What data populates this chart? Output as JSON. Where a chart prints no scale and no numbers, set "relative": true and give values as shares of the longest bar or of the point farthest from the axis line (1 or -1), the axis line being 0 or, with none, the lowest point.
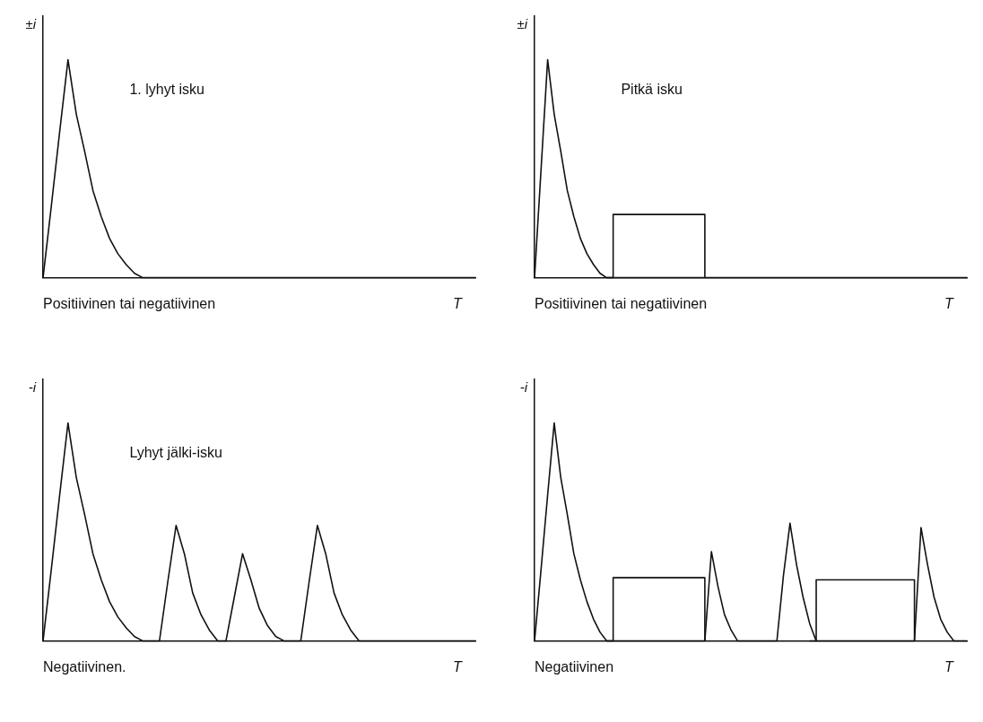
{
  "chart_data": [
    {
      "type": "line",
      "relative": true,
      "marker": "none",
      "ylabel": "±i",
      "xlabel": "T",
      "annotations": [
        "1. lyhyt isku",
        "Positiivinen tai negatiivinen"
      ],
      "categories": [
        null,
        null,
        null,
        null,
        null,
        null,
        null,
        null,
        null,
        null,
        null,
        null,
        null,
        null,
        null,
        null,
        null,
        null,
        null,
        null,
        null,
        null,
        null,
        null,
        null,
        null,
        null,
        null,
        null,
        null,
        null,
        null,
        null,
        null,
        null,
        null,
        null,
        null,
        null,
        null,
        null,
        null,
        null,
        null,
        null,
        null,
        null,
        null,
        null,
        null,
        null,
        null,
        null
      ],
      "series": [
        {
          "color": "#111111",
          "values": [
            0,
            0.33,
            0.67,
            1,
            0.75,
            0.58,
            0.4,
            0.28,
            0.18,
            0.11,
            0.06,
            0.02,
            0,
            0,
            0,
            0,
            0,
            0,
            0,
            0,
            0,
            0,
            0,
            0,
            0,
            0,
            0,
            0,
            0,
            0,
            0,
            0,
            0,
            0,
            0,
            0,
            0,
            0,
            0,
            0,
            0,
            0,
            0,
            0,
            0,
            0,
            0,
            0,
            0,
            0,
            0,
            0,
            0
          ]
        }
      ]
    },
    {
      "type": "line",
      "relative": true,
      "marker": "none",
      "ylabel": "±i",
      "xlabel": "T",
      "annotations": [
        "Pitkä isku",
        "Positiivinen tai negatiivinen"
      ],
      "categories": [
        null,
        null,
        null,
        null,
        null,
        null,
        null,
        null,
        null,
        null,
        null,
        null,
        null,
        null,
        null,
        null,
        null,
        null,
        null,
        null,
        null,
        null,
        null,
        null,
        null,
        null,
        null,
        null,
        null,
        null,
        null,
        null,
        null,
        null,
        null,
        null,
        null,
        null,
        null,
        null,
        null,
        null,
        null,
        null,
        null,
        null,
        null,
        null,
        null,
        null,
        null,
        null,
        null,
        null,
        null,
        null,
        null,
        null,
        null,
        null,
        null,
        null,
        null,
        null,
        null,
        null,
        null
      ],
      "series": [
        {
          "color": "#111111",
          "values": [
            0,
            0.5,
            1,
            0.75,
            0.58,
            0.4,
            0.28,
            0.18,
            0.11,
            0.06,
            0.02,
            0,
            0,
            0,
            0,
            0,
            0,
            0,
            0,
            0,
            0,
            0,
            0,
            0,
            0,
            0,
            0,
            0,
            0,
            0,
            0,
            0,
            0,
            0,
            0,
            0,
            0,
            0,
            0,
            0,
            0,
            0,
            0,
            0,
            0,
            0,
            0,
            0,
            0,
            0,
            0,
            0,
            0,
            0,
            0,
            0,
            0,
            0,
            0,
            0,
            0,
            0,
            0,
            0,
            0,
            0,
            0
          ]
        },
        {
          "type": "step",
          "color": "#111111",
          "values": [
            null,
            null,
            null,
            null,
            null,
            null,
            null,
            null,
            null,
            null,
            null,
            0,
            0.29,
            0.29,
            0.29,
            0.29,
            0.29,
            0.29,
            0.29,
            0.29,
            0.29,
            0.29,
            0.29,
            0.29,
            0.29,
            0.29,
            0,
            null,
            null,
            null,
            null,
            null,
            null,
            null,
            null,
            null,
            null,
            null,
            null,
            null,
            null,
            null,
            null,
            null,
            null,
            null,
            null,
            null,
            null,
            null,
            null,
            null,
            null,
            null,
            null,
            null,
            null,
            null,
            null,
            null,
            null,
            null,
            null,
            null,
            null,
            null,
            null
          ]
        }
      ]
    },
    {
      "type": "line",
      "relative": true,
      "marker": "none",
      "ylabel": "-i",
      "xlabel": "T",
      "annotations": [
        "Lyhyt jälki-isku",
        "Negatiivinen."
      ],
      "categories": [
        null,
        null,
        null,
        null,
        null,
        null,
        null,
        null,
        null,
        null,
        null,
        null,
        null,
        null,
        null,
        null,
        null,
        null,
        null,
        null,
        null,
        null,
        null,
        null,
        null,
        null,
        null,
        null,
        null,
        null,
        null,
        null,
        null,
        null,
        null,
        null,
        null,
        null,
        null,
        null,
        null,
        null,
        null,
        null,
        null,
        null,
        null,
        null,
        null,
        null,
        null,
        null,
        null
      ],
      "series": [
        {
          "color": "#111111",
          "values": [
            0,
            0.33,
            0.67,
            1,
            0.75,
            0.58,
            0.4,
            0.28,
            0.18,
            0.11,
            0.06,
            0.02,
            0,
            0,
            0,
            0.27,
            0.53,
            0.4,
            0.22,
            0.12,
            0.05,
            0,
            0,
            0.2,
            0.4,
            0.28,
            0.15,
            0.07,
            0.02,
            0,
            0,
            0,
            0.27,
            0.53,
            0.4,
            0.22,
            0.12,
            0.05,
            0,
            0,
            0,
            0,
            0,
            0,
            0,
            0,
            0,
            0,
            0,
            0,
            0,
            0,
            0
          ]
        }
      ]
    },
    {
      "type": "line",
      "relative": true,
      "marker": "none",
      "ylabel": "-i",
      "xlabel": "T",
      "annotations": [
        "Negatiivinen"
      ],
      "categories": [
        null,
        null,
        null,
        null,
        null,
        null,
        null,
        null,
        null,
        null,
        null,
        null,
        null,
        null,
        null,
        null,
        null,
        null,
        null,
        null,
        null,
        null,
        null,
        null,
        null,
        null,
        null,
        null,
        null,
        null,
        null,
        null,
        null,
        null,
        null,
        null,
        null,
        null,
        null,
        null,
        null,
        null,
        null,
        null,
        null,
        null,
        null,
        null,
        null,
        null,
        null,
        null,
        null,
        null,
        null,
        null,
        null,
        null,
        null,
        null,
        null,
        null,
        null,
        null,
        null,
        null,
        null
      ],
      "series": [
        {
          "color": "#111111",
          "values": [
            0,
            0.33,
            0.67,
            1,
            0.75,
            0.58,
            0.4,
            0.28,
            0.18,
            0.1,
            0.04,
            0,
            0,
            0,
            0,
            0,
            0,
            0,
            0,
            0,
            0,
            0,
            0,
            0,
            0,
            0,
            0,
            0.41,
            0.25,
            0.12,
            0.05,
            0,
            0,
            0,
            0,
            0,
            0,
            0,
            0.3,
            0.54,
            0.35,
            0.2,
            0.08,
            0,
            0,
            0,
            0,
            0,
            0,
            0,
            0,
            0,
            0,
            0,
            0,
            0,
            0,
            0,
            0,
            0.52,
            0.35,
            0.2,
            0.1,
            0.04,
            0,
            0,
            0
          ]
        },
        {
          "type": "step",
          "color": "#111111",
          "values": [
            null,
            null,
            null,
            null,
            null,
            null,
            null,
            null,
            null,
            null,
            null,
            0,
            0.29,
            0.29,
            0.29,
            0.29,
            0.29,
            0.29,
            0.29,
            0.29,
            0.29,
            0.29,
            0.29,
            0.29,
            0.29,
            0.29,
            0,
            null,
            null,
            null,
            null,
            null,
            null,
            null,
            null,
            null,
            null,
            null,
            null,
            null,
            null,
            null,
            0,
            0.28,
            0.28,
            0.28,
            0.28,
            0.28,
            0.28,
            0.28,
            0.28,
            0.28,
            0.28,
            0.28,
            0.28,
            0.28,
            0.28,
            0.28,
            0,
            null,
            null,
            null,
            null,
            null,
            null,
            null,
            null
          ]
        }
      ]
    }
  ]
}
